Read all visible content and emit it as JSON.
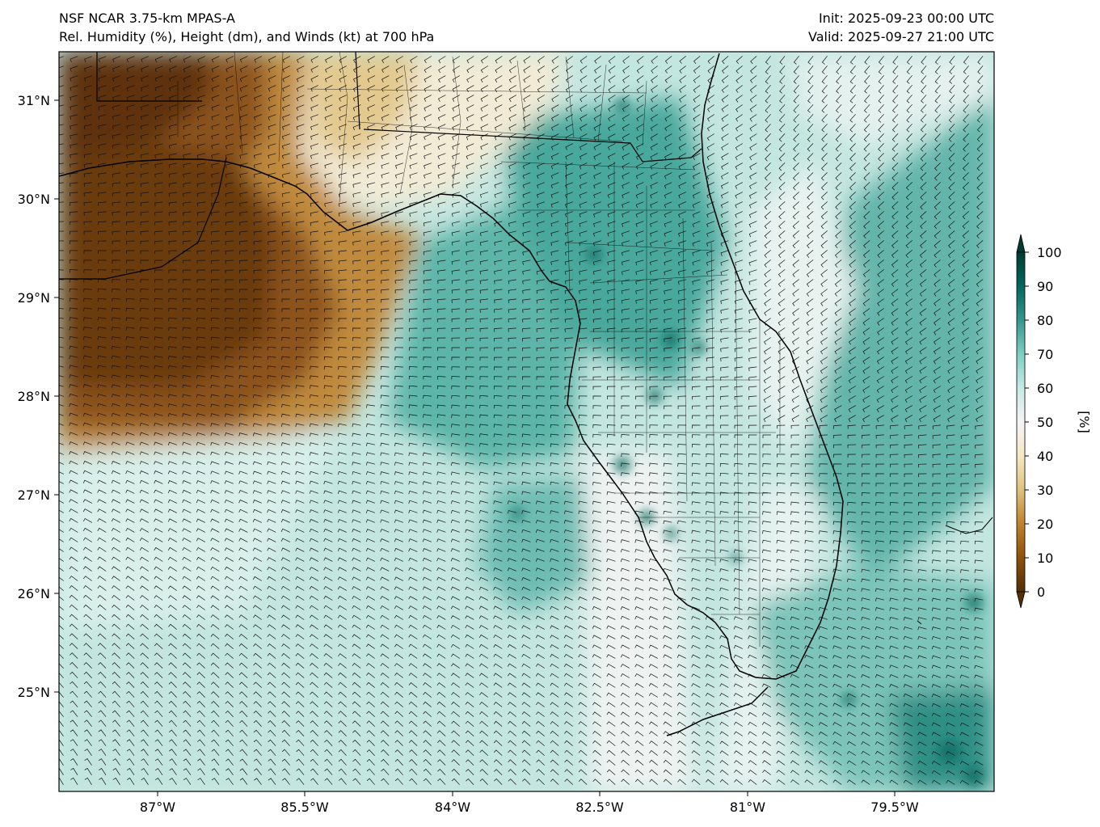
{
  "title_left": {
    "line1": "NSF NCAR 3.75-km MPAS-A",
    "line2": "Rel. Humidity (%), Height (dm), and Winds (kt) at 700 hPa"
  },
  "title_right": {
    "line1": "Init: 2025-09-23 00:00 UTC",
    "line2": "Valid: 2025-09-27 21:00 UTC"
  },
  "lat_ticks": [
    "31°N",
    "30°N",
    "29°N",
    "28°N",
    "27°N",
    "26°N",
    "25°N"
  ],
  "lon_ticks": [
    "87°W",
    "85.5°W",
    "84°W",
    "82.5°W",
    "81°W",
    "79.5°W"
  ],
  "colorbar": {
    "label": "[%]",
    "ticks": [
      "0",
      "10",
      "20",
      "30",
      "40",
      "50",
      "60",
      "70",
      "80",
      "90",
      "100"
    ],
    "colors": [
      "#543005",
      "#8c510a",
      "#bf812d",
      "#dfc27d",
      "#f6e8c3",
      "#f5f5f5",
      "#c7eae5",
      "#80cdc1",
      "#35978f",
      "#01665e",
      "#003c30"
    ]
  },
  "chart_data": {
    "type": "heatmap",
    "variable": "Rel. Humidity (%)",
    "xlim": [
      "88°W",
      "78.5°W"
    ],
    "ylim": [
      "24.0°N",
      "31.5°N"
    ],
    "value_range": [
      0,
      100
    ],
    "x_ticks": [
      "87°W",
      "85.5°W",
      "84°W",
      "82.5°W",
      "81°W",
      "79.5°W"
    ],
    "y_ticks": [
      "31°N",
      "30°N",
      "29°N",
      "28°N",
      "27°N",
      "26°N",
      "25°N"
    ],
    "overlays": [
      "state boundaries",
      "county boundaries",
      "coastlines",
      "wind barbs",
      "height contours"
    ]
  }
}
